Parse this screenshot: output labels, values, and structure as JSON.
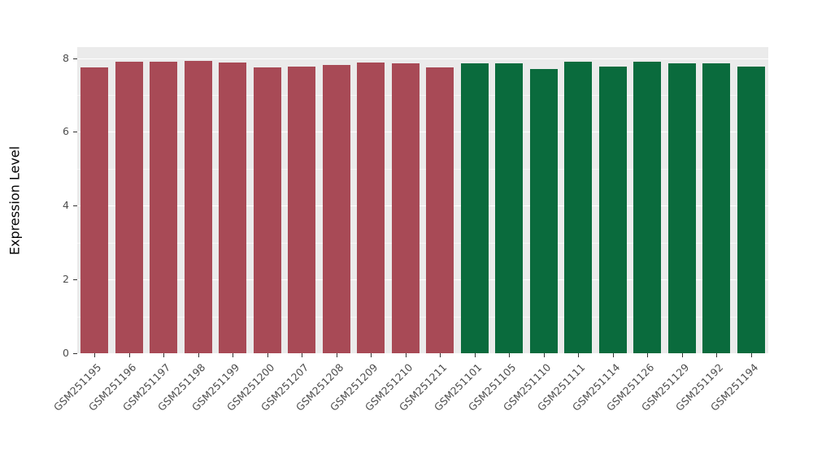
{
  "chart_data": {
    "type": "bar",
    "title": "",
    "xlabel": "",
    "ylabel": "Expression Level",
    "ylim": [
      0,
      8.3
    ],
    "yticks": [
      0,
      2,
      4,
      6,
      8
    ],
    "yticks_minor": [
      1,
      3,
      5,
      7
    ],
    "grid": true,
    "legend": "none",
    "categories": [
      "GSM251195",
      "GSM251196",
      "GSM251197",
      "GSM251198",
      "GSM251199",
      "GSM251200",
      "GSM251207",
      "GSM251208",
      "GSM251209",
      "GSM251210",
      "GSM251211",
      "GSM251101",
      "GSM251105",
      "GSM251110",
      "GSM251111",
      "GSM251114",
      "GSM251126",
      "GSM251129",
      "GSM251192",
      "GSM251194"
    ],
    "values": [
      7.76,
      7.9,
      7.9,
      7.93,
      7.89,
      7.76,
      7.78,
      7.82,
      7.89,
      7.85,
      7.76,
      7.87,
      7.85,
      7.71,
      7.9,
      7.78,
      7.9,
      7.87,
      7.87,
      7.78
    ],
    "groups": [
      "red",
      "red",
      "red",
      "red",
      "red",
      "red",
      "red",
      "red",
      "red",
      "red",
      "red",
      "green",
      "green",
      "green",
      "green",
      "green",
      "green",
      "green",
      "green",
      "green"
    ],
    "colors": {
      "red": "#A84A56",
      "green": "#0A6B3D",
      "panel_background": "#EBEBEB",
      "gridline": "#FFFFFF",
      "tick_text": "#4D4D4D",
      "axis_title": "#000000"
    },
    "bar_width_fraction": 0.8
  }
}
